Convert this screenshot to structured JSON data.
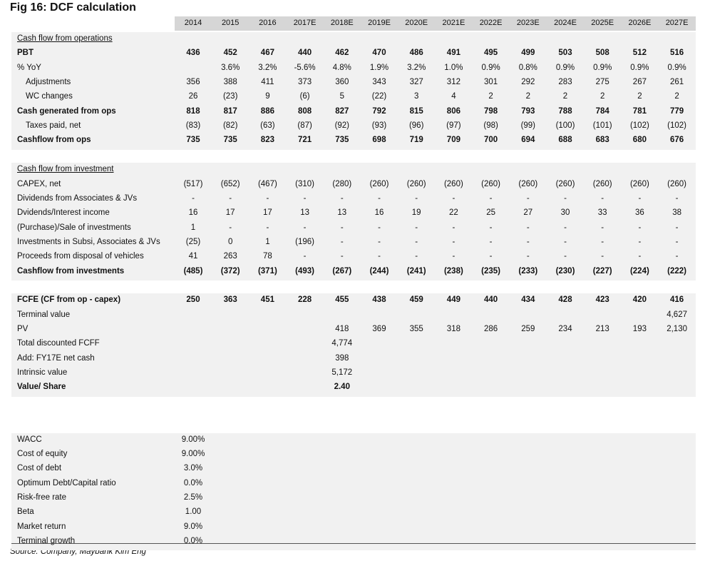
{
  "title": "Fig 16: DCF calculation",
  "columns": [
    "2014",
    "2015",
    "2016",
    "2017E",
    "2018E",
    "2019E",
    "2020E",
    "2021E",
    "2022E",
    "2023E",
    "2024E",
    "2025E",
    "2026E",
    "2027E"
  ],
  "sections": [
    {
      "title": "Cash flow from operations",
      "rows": [
        {
          "label": "PBT",
          "cells": [
            "436",
            "452",
            "467",
            "440",
            "462",
            "470",
            "486",
            "491",
            "495",
            "499",
            "503",
            "508",
            "512",
            "516"
          ]
        },
        {
          "label": "% YoY",
          "cells": [
            null,
            "3.6%",
            "3.2%",
            "-5.6%",
            "4.8%",
            "1.9%",
            "3.2%",
            "1.0%",
            "0.9%",
            "0.8%",
            "0.9%",
            "0.9%",
            "0.9%",
            "0.9%"
          ]
        },
        {
          "label": "Adjustments",
          "cells": [
            "356",
            "388",
            "411",
            "373",
            "360",
            "343",
            "327",
            "312",
            "301",
            "292",
            "283",
            "275",
            "267",
            "261"
          ]
        },
        {
          "label": "WC changes",
          "cells": [
            "26",
            "(23)",
            "9",
            "(6)",
            "5",
            "(22)",
            "3",
            "4",
            "2",
            "2",
            "2",
            "2",
            "2",
            "2"
          ]
        },
        {
          "label": "Cash generated from ops",
          "cells": [
            "818",
            "817",
            "886",
            "808",
            "827",
            "792",
            "815",
            "806",
            "798",
            "793",
            "788",
            "784",
            "781",
            "779"
          ]
        },
        {
          "label": "Taxes paid, net",
          "cells": [
            "(83)",
            "(82)",
            "(63)",
            "(87)",
            "(92)",
            "(93)",
            "(96)",
            "(97)",
            "(98)",
            "(99)",
            "(100)",
            "(101)",
            "(102)",
            "(102)"
          ]
        },
        {
          "label": "Cashflow from ops",
          "cells": [
            "735",
            "735",
            "823",
            "721",
            "735",
            "698",
            "719",
            "709",
            "700",
            "694",
            "688",
            "683",
            "680",
            "676"
          ]
        }
      ]
    },
    {
      "title": "Cash flow from investment",
      "rows": [
        {
          "label": "CAPEX, net",
          "cells": [
            "(517)",
            "(652)",
            "(467)",
            "(310)",
            "(280)",
            "(260)",
            "(260)",
            "(260)",
            "(260)",
            "(260)",
            "(260)",
            "(260)",
            "(260)",
            "(260)"
          ]
        },
        {
          "label": "Dividends from Associates & JVs",
          "cells": [
            "-",
            "-",
            "-",
            "-",
            "-",
            "-",
            "-",
            "-",
            "-",
            "-",
            "-",
            "-",
            "-",
            "-"
          ]
        },
        {
          "label": "Dvidends/Interest income",
          "cells": [
            "16",
            "17",
            "17",
            "13",
            "13",
            "16",
            "19",
            "22",
            "25",
            "27",
            "30",
            "33",
            "36",
            "38"
          ]
        },
        {
          "label": "(Purchase)/Sale of investments",
          "cells": [
            "1",
            "-",
            "-",
            "-",
            "-",
            "-",
            "-",
            "-",
            "-",
            "-",
            "-",
            "-",
            "-",
            "-"
          ]
        },
        {
          "label": "Investments in Subsi, Associates & JVs",
          "cells": [
            "(25)",
            "0",
            "1",
            "(196)",
            "-",
            "-",
            "-",
            "-",
            "-",
            "-",
            "-",
            "-",
            "-",
            "-"
          ]
        },
        {
          "label": "Proceeds from disposal of vehicles",
          "cells": [
            "41",
            "263",
            "78",
            "-",
            "-",
            "-",
            "-",
            "-",
            "-",
            "-",
            "-",
            "-",
            "-",
            "-"
          ]
        },
        {
          "label": "Cashflow from investments",
          "cells": [
            "(485)",
            "(372)",
            "(371)",
            "(493)",
            "(267)",
            "(244)",
            "(241)",
            "(238)",
            "(235)",
            "(233)",
            "(230)",
            "(227)",
            "(224)",
            "(222)"
          ]
        }
      ]
    },
    {
      "rows": [
        {
          "label": "FCFE (CF from op - capex)",
          "cells": [
            "250",
            "363",
            "451",
            "228",
            "455",
            "438",
            "459",
            "449",
            "440",
            "434",
            "428",
            "423",
            "420",
            "416"
          ]
        },
        {
          "label": "Terminal value",
          "cells": [
            null,
            null,
            null,
            null,
            null,
            null,
            null,
            null,
            null,
            null,
            null,
            null,
            null,
            "4,627"
          ]
        },
        {
          "label": "PV",
          "cells": [
            null,
            null,
            null,
            null,
            "418",
            "369",
            "355",
            "318",
            "286",
            "259",
            "234",
            "213",
            "193",
            "2,130"
          ]
        },
        {
          "label": "Total discounted FCFF",
          "cells": [
            null,
            null,
            null,
            null,
            "4,774"
          ]
        },
        {
          "label": "Add: FY17E net cash",
          "cells": [
            null,
            null,
            null,
            null,
            "398"
          ]
        },
        {
          "label": "Intrinsic value",
          "cells": [
            null,
            null,
            null,
            null,
            "5,172"
          ]
        },
        {
          "label": "Value/ Share",
          "cells": [
            null,
            null,
            null,
            null,
            "2.40"
          ]
        }
      ]
    },
    {
      "rows": [
        {
          "label": "WACC",
          "cells": [
            "9.00%"
          ]
        },
        {
          "label": "Cost of equity",
          "cells": [
            "9.00%"
          ]
        },
        {
          "label": "Cost of debt",
          "cells": [
            "3.0%"
          ]
        },
        {
          "label": "Optimum Debt/Capital ratio",
          "cells": [
            "0.0%"
          ]
        },
        {
          "label": "Risk-free rate",
          "cells": [
            "2.5%"
          ]
        },
        {
          "label": "Beta",
          "cells": [
            "1.00"
          ]
        },
        {
          "label": "Market return",
          "cells": [
            "9.0%"
          ]
        },
        {
          "label": "Terminal growth",
          "cells": [
            "0.0%"
          ]
        }
      ]
    }
  ],
  "source": "Source: Company, Maybank Kim Eng"
}
